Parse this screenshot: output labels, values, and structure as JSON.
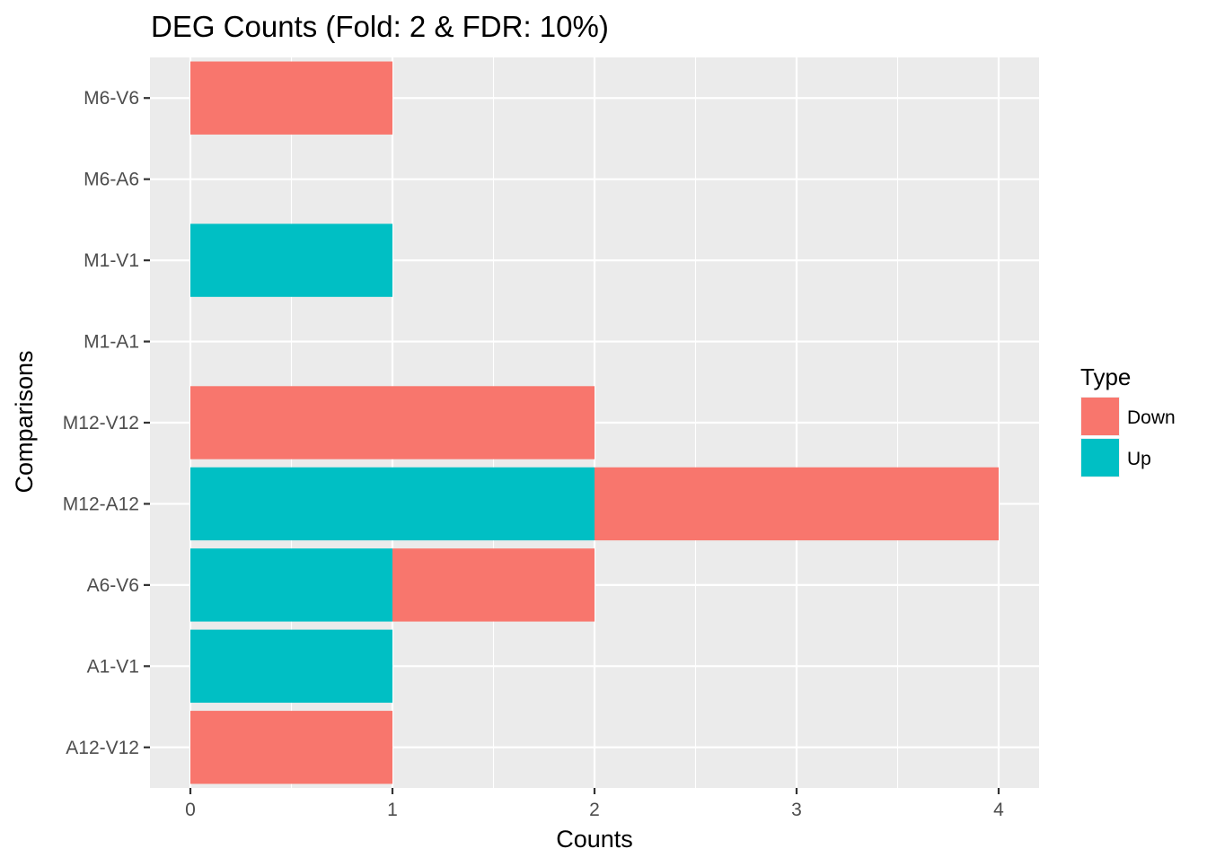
{
  "chart_data": {
    "type": "bar",
    "orientation": "horizontal",
    "stacked": true,
    "title": "DEG Counts (Fold: 2 & FDR: 10%)",
    "xlabel": "Counts",
    "ylabel": "Comparisons",
    "xlim": [
      -0.2,
      4.2
    ],
    "x_ticks": [
      0,
      1,
      2,
      3,
      4
    ],
    "categories": [
      "A12-V12",
      "A1-V1",
      "A6-V6",
      "M12-A12",
      "M12-V12",
      "M1-A1",
      "M1-V1",
      "M6-A6",
      "M6-V6"
    ],
    "series": [
      {
        "name": "Up",
        "color": "#00BFC4",
        "values": [
          0,
          1,
          1,
          2,
          0,
          0,
          1,
          0,
          0
        ]
      },
      {
        "name": "Down",
        "color": "#F8766D",
        "values": [
          1,
          0,
          1,
          2,
          2,
          0,
          0,
          0,
          1
        ]
      }
    ],
    "legend": {
      "title": "Type",
      "position": "right",
      "entries": [
        {
          "label": "Down",
          "color": "#F8766D"
        },
        {
          "label": "Up",
          "color": "#00BFC4"
        }
      ]
    },
    "grid": true,
    "panel_background": "#EBEBEB"
  }
}
